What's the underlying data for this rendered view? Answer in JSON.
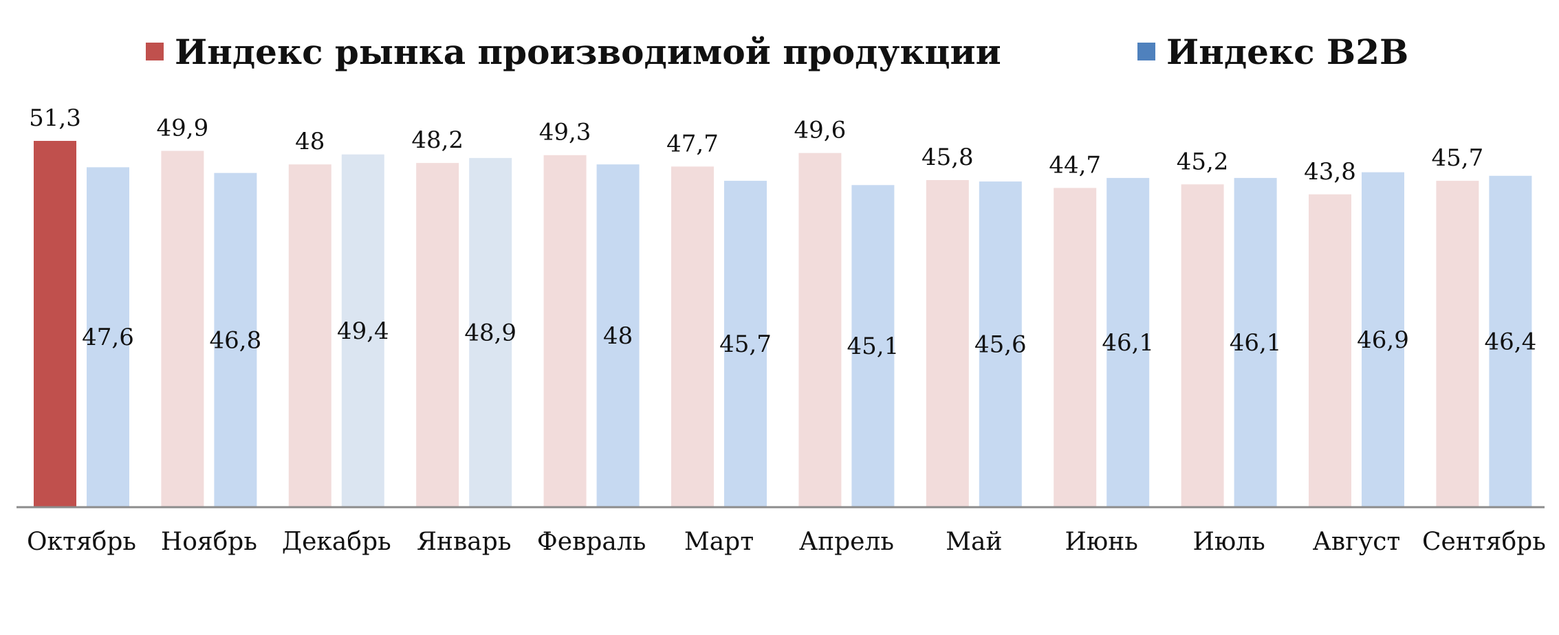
{
  "chart_data": {
    "type": "bar",
    "categories": [
      "Октябрь",
      "Ноябрь",
      "Декабрь",
      "Январь",
      "Февраль",
      "Март",
      "Апрель",
      "Май",
      "Июнь",
      "Июль",
      "Август",
      "Сентябрь"
    ],
    "series": [
      {
        "name": "Индекс рынка производимой продукции",
        "values": [
          51.3,
          49.9,
          48,
          48.2,
          49.3,
          47.7,
          49.6,
          45.8,
          44.7,
          45.2,
          43.8,
          45.7
        ],
        "labels": [
          "51,3",
          "49,9",
          "48",
          "48,2",
          "49,3",
          "47,7",
          "49,6",
          "45,8",
          "44,7",
          "45,2",
          "43,8",
          "45,7"
        ],
        "legend_color": "#c0504d",
        "highlight_color": "#c0504d",
        "muted_color": "#f2dcdb"
      },
      {
        "name": "Индекс B2B",
        "values": [
          47.6,
          46.8,
          49.4,
          48.9,
          48,
          45.7,
          45.1,
          45.6,
          46.1,
          46.1,
          46.9,
          46.4
        ],
        "labels": [
          "47,6",
          "46,8",
          "49,4",
          "48,9",
          "48",
          "45,7",
          "45,1",
          "45,6",
          "46,1",
          "46,1",
          "46,9",
          "46,4"
        ],
        "legend_color": "#4f81bd",
        "muted_color": "#c6d9f1",
        "light_color": "#dbe5f1"
      }
    ],
    "highlight_index": 0,
    "light_b2b_indices": [
      2,
      3
    ],
    "ylim": [
      0,
      51.3
    ],
    "legend_position": "top-center",
    "grid": false,
    "title": "",
    "xlabel": "",
    "ylabel": ""
  }
}
